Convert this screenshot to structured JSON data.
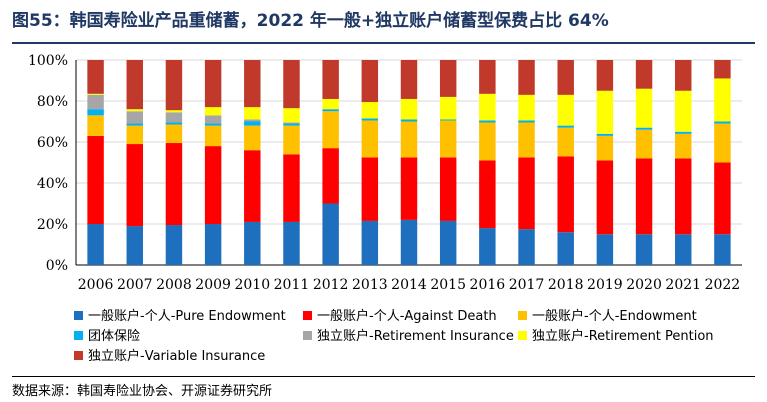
{
  "title": "图55：韩国寿险业产品重储蓄，2022 年一般+独立账户储蓄型保费占比 64%",
  "source": "数据来源：韩国寿险业协会、开源证券研究所",
  "chart_data": {
    "type": "bar",
    "stacked": true,
    "percent": true,
    "categories": [
      "2006",
      "2007",
      "2008",
      "2009",
      "2010",
      "2011",
      "2012",
      "2013",
      "2014",
      "2015",
      "2016",
      "2017",
      "2018",
      "2019",
      "2020",
      "2021",
      "2022"
    ],
    "ylim": [
      0,
      100
    ],
    "yticks": [
      "0%",
      "20%",
      "40%",
      "60%",
      "80%",
      "100%"
    ],
    "grid": true,
    "legend_position": "bottom",
    "series": [
      {
        "name": "一般账户-个人-Pure Endowment",
        "color": "#1f6fbf",
        "values": [
          20,
          19,
          19.5,
          20,
          21,
          21,
          30,
          21.5,
          22,
          21.5,
          18,
          17.5,
          16,
          15,
          15,
          15,
          15
        ]
      },
      {
        "name": "一般账户-个人-Against Death",
        "color": "#ff0000",
        "values": [
          43,
          40,
          40,
          38,
          35,
          33,
          27,
          31,
          30.5,
          31,
          33,
          35,
          37,
          36,
          37,
          37,
          35
        ]
      },
      {
        "name": "一般账户-个人-Endowment",
        "color": "#ffc000",
        "values": [
          10,
          9,
          9,
          10,
          12,
          14,
          18,
          18,
          17.5,
          18,
          18.5,
          17,
          14,
          12,
          14,
          12,
          19
        ]
      },
      {
        "name": "团体保险",
        "color": "#00b0f0",
        "values": [
          3,
          1,
          1,
          1,
          2,
          1,
          1,
          1,
          1,
          0.5,
          1,
          1,
          1,
          1,
          1,
          1,
          1
        ]
      },
      {
        "name": "独立账户-Retirement Insurance",
        "color": "#a6a6a6",
        "values": [
          7,
          6,
          5,
          4,
          1,
          0.5,
          0,
          0,
          0,
          0,
          0,
          0,
          0,
          0,
          0,
          0,
          0
        ]
      },
      {
        "name": "独立账户-Retirement Pention",
        "color": "#ffff00",
        "values": [
          0.5,
          1,
          1,
          4,
          6,
          7,
          5,
          8,
          10,
          11,
          13,
          12.5,
          15,
          21,
          19,
          20,
          21
        ]
      },
      {
        "name": "独立账户-Variable Insurance",
        "color": "#c0392b",
        "values": [
          16.5,
          24,
          24.5,
          23,
          23,
          23.5,
          19,
          20.5,
          19,
          18,
          16.5,
          17,
          17,
          15,
          14,
          15,
          9
        ]
      }
    ]
  }
}
